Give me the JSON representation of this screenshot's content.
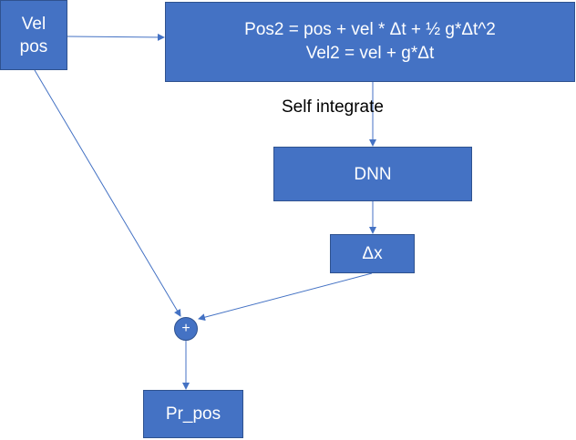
{
  "nodes": {
    "input": {
      "line1": "Vel",
      "line2": "pos"
    },
    "formula": {
      "line1": "Pos2 = pos + vel * Δt + ½ g*Δt^2",
      "line2": "Vel2 = vel + g*Δt"
    },
    "dnn": "DNN",
    "delta": "Δx",
    "sum": "+",
    "output": "Pr_pos"
  },
  "labels": {
    "self_integrate": "Self integrate"
  },
  "colors": {
    "box_fill": "#4472C4",
    "box_border": "#2F528F",
    "edge": "#4472C4",
    "box_text": "#FFFFFF"
  }
}
